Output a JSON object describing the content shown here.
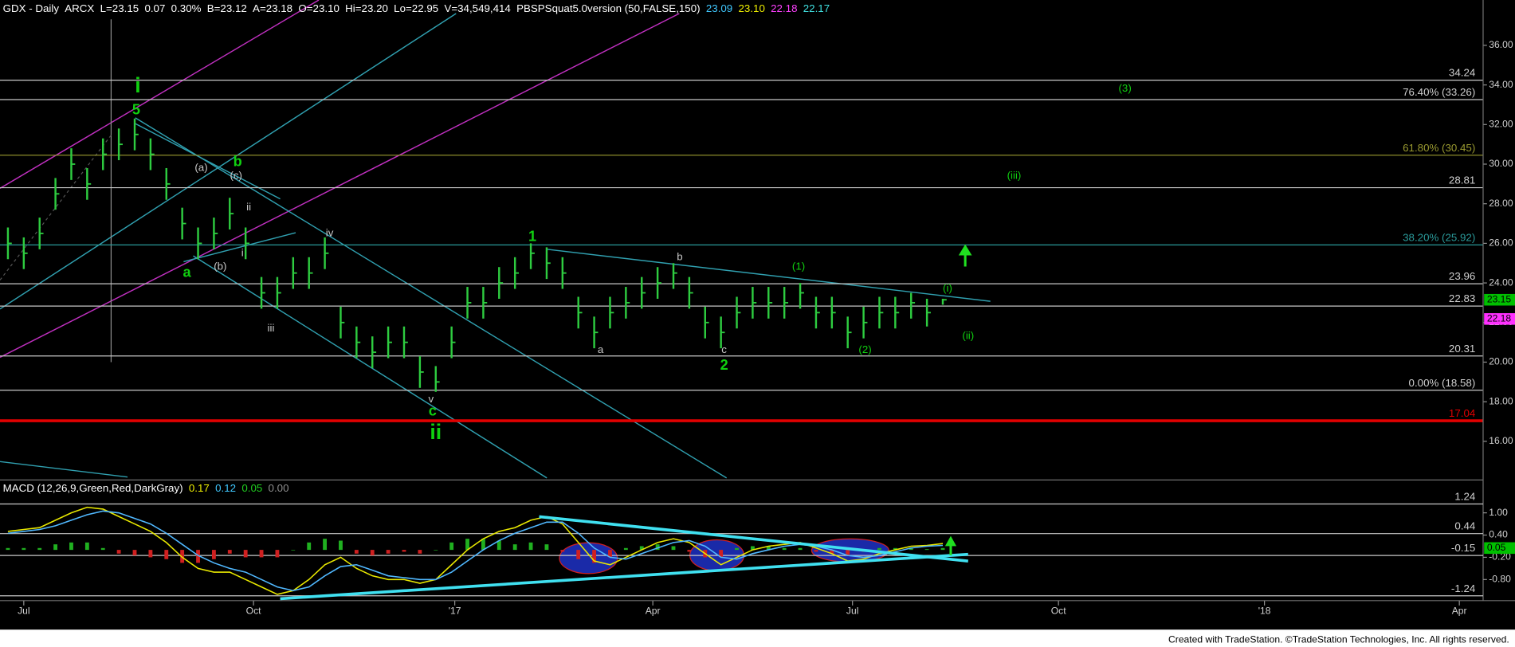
{
  "chart_data": [
    {
      "type": "ohlc",
      "header": [
        {
          "text": "GDX - Daily",
          "color": "#ffffff"
        },
        {
          "text": "ARCX",
          "color": "#ffffff"
        },
        {
          "text": "L=23.15",
          "color": "#ffffff"
        },
        {
          "text": "0.07",
          "color": "#ffffff"
        },
        {
          "text": "0.30%",
          "color": "#ffffff"
        },
        {
          "text": "B=23.12",
          "color": "#ffffff"
        },
        {
          "text": "A=23.18",
          "color": "#ffffff"
        },
        {
          "text": "O=23.10",
          "color": "#ffffff"
        },
        {
          "text": "Hi=23.20",
          "color": "#ffffff"
        },
        {
          "text": "Lo=22.95",
          "color": "#ffffff"
        },
        {
          "text": "V=34,549,414",
          "color": "#ffffff"
        },
        {
          "text": "PBSPSquat5.0version (50,FALSE,150)",
          "color": "#ffffff"
        },
        {
          "text": "23.09",
          "color": "#40c8ff"
        },
        {
          "text": "23.10",
          "color": "#f0f000"
        },
        {
          "text": "22.18",
          "color": "#ff40ff"
        },
        {
          "text": "22.17",
          "color": "#40e0e0"
        }
      ],
      "color": "#2ecc40",
      "x": [
        0,
        1,
        2,
        3,
        4,
        5,
        6,
        7,
        8,
        9,
        10,
        11,
        12,
        13,
        14,
        15,
        16,
        17,
        18,
        19,
        20,
        21,
        22,
        23,
        24,
        25,
        26,
        27,
        28,
        29,
        30,
        31,
        32,
        33,
        34,
        35,
        36,
        37,
        38,
        39,
        40,
        41,
        42,
        43,
        44,
        45,
        46,
        47,
        48,
        49,
        50,
        51,
        52,
        53,
        54,
        55,
        56,
        57,
        58,
        59
      ],
      "high": [
        26.8,
        26.3,
        27.3,
        29.3,
        30.8,
        29.8,
        31.3,
        31.8,
        32.3,
        31.3,
        29.8,
        27.8,
        26.8,
        27.3,
        28.3,
        26.8,
        24.3,
        24.3,
        25.3,
        25.3,
        26.3,
        22.8,
        21.8,
        21.3,
        21.8,
        21.8,
        20.3,
        19.8,
        21.8,
        23.8,
        23.8,
        24.8,
        25.3,
        26.0,
        25.8,
        25.3,
        23.3,
        22.3,
        23.3,
        23.8,
        24.3,
        24.8,
        25.0,
        24.3,
        22.8,
        22.3,
        23.3,
        23.8,
        23.8,
        23.8,
        24.0,
        23.3,
        23.3,
        22.3,
        22.8,
        23.3,
        23.3,
        23.5,
        23.2,
        23.2
      ],
      "low": [
        25.2,
        24.7,
        25.7,
        27.7,
        29.2,
        28.2,
        29.7,
        30.2,
        30.7,
        29.7,
        28.2,
        26.2,
        25.2,
        25.7,
        26.7,
        25.2,
        22.7,
        22.7,
        23.7,
        23.7,
        24.7,
        21.2,
        20.2,
        19.7,
        20.2,
        20.2,
        18.7,
        18.5,
        20.2,
        22.2,
        22.2,
        23.2,
        23.7,
        24.7,
        24.2,
        23.7,
        21.7,
        20.7,
        21.7,
        22.2,
        22.7,
        23.2,
        23.7,
        22.7,
        21.2,
        20.7,
        21.7,
        22.2,
        22.2,
        22.2,
        22.7,
        21.7,
        21.7,
        20.7,
        21.2,
        21.7,
        21.7,
        22.2,
        21.8,
        22.9
      ],
      "close": [
        26.0,
        25.5,
        26.5,
        28.5,
        30.0,
        29.0,
        30.5,
        31.0,
        31.5,
        30.5,
        29.0,
        27.0,
        26.0,
        26.5,
        27.5,
        26.0,
        23.5,
        23.5,
        24.5,
        24.5,
        25.5,
        22.0,
        21.0,
        20.5,
        21.0,
        21.0,
        19.5,
        19.0,
        21.0,
        23.0,
        23.0,
        24.0,
        24.5,
        25.5,
        25.0,
        24.5,
        22.5,
        21.5,
        22.5,
        23.0,
        23.5,
        24.0,
        24.5,
        23.5,
        22.0,
        21.5,
        22.5,
        23.0,
        23.0,
        23.0,
        23.5,
        22.5,
        22.5,
        21.5,
        22.0,
        22.5,
        22.5,
        23.0,
        22.5,
        23.15
      ],
      "xlim": [
        -0.5,
        93.1
      ],
      "ylim": [
        14.05,
        38.29
      ],
      "yticks": [
        {
          "value": 36,
          "label": "36.00"
        },
        {
          "value": 34,
          "label": "34.00"
        },
        {
          "value": 32,
          "label": "32.00"
        },
        {
          "value": 30,
          "label": "30.00"
        },
        {
          "value": 28,
          "label": "28.00"
        },
        {
          "value": 26,
          "label": "26.00"
        },
        {
          "value": 24,
          "label": "24.00"
        },
        {
          "value": 22,
          "label": "22.00"
        },
        {
          "value": 20,
          "label": "20.00"
        },
        {
          "value": 18,
          "label": "18.00"
        },
        {
          "value": 16,
          "label": "16.00"
        }
      ],
      "levels": [
        {
          "value": 34.24,
          "color": "#c8c8c8"
        },
        {
          "value": 33.26,
          "label": "76.40% (33.26)",
          "color": "#c8c8c8"
        },
        {
          "value": 30.45,
          "label": "61.80% (30.45)",
          "color": "#9a9a30"
        },
        {
          "value": 28.81,
          "color": "#c8c8c8"
        },
        {
          "value": 25.92,
          "label": "38.20% (25.92)",
          "color": "#2a9a9a"
        },
        {
          "value": 23.96,
          "color": "#c8c8c8"
        },
        {
          "value": 22.83,
          "color": "#c8c8c8"
        },
        {
          "value": 20.31,
          "color": "#c8c8c8"
        },
        {
          "value": 18.58,
          "label": "0.00% (18.58)",
          "color": "#c8c8c8"
        },
        {
          "value": 17.04,
          "color": "#e00000",
          "bold": true
        }
      ],
      "price_tags": [
        {
          "value": 23.15,
          "color": "#00c000"
        },
        {
          "value": 22.18,
          "color": "#ff30ff"
        }
      ],
      "annotations": [
        {
          "text": "i",
          "x": 8.2,
          "y": 33.9,
          "style": "major"
        },
        {
          "text": "5",
          "x": 8.1,
          "y": 32.7,
          "style": "wave"
        },
        {
          "text": "b",
          "x": 14.5,
          "y": 30.1,
          "style": "wave"
        },
        {
          "text": "(a)",
          "x": 12.2,
          "y": 29.8,
          "style": "minor"
        },
        {
          "text": "(c)",
          "x": 14.4,
          "y": 29.4,
          "style": "minor"
        },
        {
          "text": "ii",
          "x": 15.2,
          "y": 27.8,
          "style": "minor"
        },
        {
          "text": "i",
          "x": 14.8,
          "y": 25.5,
          "style": "minor"
        },
        {
          "text": "(b)",
          "x": 13.4,
          "y": 24.8,
          "style": "minor"
        },
        {
          "text": "a",
          "x": 11.3,
          "y": 24.5,
          "style": "wave"
        },
        {
          "text": "iv",
          "x": 20.3,
          "y": 26.5,
          "style": "minor"
        },
        {
          "text": "iii",
          "x": 16.6,
          "y": 21.7,
          "style": "minor"
        },
        {
          "text": "v",
          "x": 26.7,
          "y": 18.1,
          "style": "minor"
        },
        {
          "text": "c",
          "x": 26.8,
          "y": 17.5,
          "style": "wave"
        },
        {
          "text": "ii",
          "x": 27.0,
          "y": 16.4,
          "style": "major"
        },
        {
          "text": "1",
          "x": 33.1,
          "y": 26.3,
          "style": "wave"
        },
        {
          "text": "b",
          "x": 42.4,
          "y": 25.3,
          "style": "minor"
        },
        {
          "text": "a",
          "x": 37.4,
          "y": 20.6,
          "style": "minor"
        },
        {
          "text": "c",
          "x": 45.2,
          "y": 20.6,
          "style": "minor"
        },
        {
          "text": "2",
          "x": 45.2,
          "y": 19.8,
          "style": "wave"
        },
        {
          "text": "(1)",
          "x": 49.9,
          "y": 24.8,
          "style": "green"
        },
        {
          "text": "(2)",
          "x": 54.1,
          "y": 20.6,
          "style": "green"
        },
        {
          "text": "(i)",
          "x": 59.3,
          "y": 23.7,
          "style": "green"
        },
        {
          "text": "(ii)",
          "x": 60.6,
          "y": 21.3,
          "style": "green"
        },
        {
          "text": "(iii)",
          "x": 63.5,
          "y": 29.4,
          "style": "green"
        },
        {
          "text": "(3)",
          "x": 70.5,
          "y": 33.8,
          "style": "green"
        }
      ]
    },
    {
      "type": "macd",
      "header": [
        {
          "text": "MACD (12,26,9,Green,Red,DarkGray)",
          "color": "#ffffff"
        },
        {
          "text": "0.17",
          "color": "#f0f000"
        },
        {
          "text": "0.12",
          "color": "#40c8ff"
        },
        {
          "text": "0.05",
          "color": "#20d020"
        },
        {
          "text": "0.00",
          "color": "#909090"
        }
      ],
      "x": [
        0,
        1,
        2,
        3,
        4,
        5,
        6,
        7,
        8,
        9,
        10,
        11,
        12,
        13,
        14,
        15,
        16,
        17,
        18,
        19,
        20,
        21,
        22,
        23,
        24,
        25,
        26,
        27,
        28,
        29,
        30,
        31,
        32,
        33,
        34,
        35,
        36,
        37,
        38,
        39,
        40,
        41,
        42,
        43,
        44,
        45,
        46,
        47,
        48,
        49,
        50,
        51,
        52,
        53,
        54,
        55,
        56,
        57,
        58,
        59
      ],
      "series": [
        {
          "name": "MACD",
          "color": "#e8e800",
          "values": [
            0.5,
            0.55,
            0.6,
            0.8,
            1.0,
            1.15,
            1.1,
            0.9,
            0.7,
            0.5,
            0.2,
            -0.2,
            -0.5,
            -0.6,
            -0.6,
            -0.8,
            -1.0,
            -1.2,
            -1.1,
            -0.8,
            -0.4,
            -0.2,
            -0.5,
            -0.7,
            -0.8,
            -0.8,
            -0.9,
            -0.8,
            -0.4,
            0.0,
            0.3,
            0.5,
            0.6,
            0.8,
            0.9,
            0.7,
            0.2,
            -0.3,
            -0.4,
            -0.2,
            0.0,
            0.2,
            0.3,
            0.2,
            -0.1,
            -0.4,
            -0.2,
            0.0,
            0.1,
            0.15,
            0.2,
            0.05,
            -0.1,
            -0.3,
            -0.25,
            -0.1,
            0.0,
            0.1,
            0.12,
            0.17
          ]
        },
        {
          "name": "Signal",
          "color": "#50b8ff",
          "values": [
            0.45,
            0.5,
            0.55,
            0.65,
            0.8,
            0.95,
            1.05,
            1.0,
            0.85,
            0.7,
            0.45,
            0.15,
            -0.15,
            -0.35,
            -0.5,
            -0.6,
            -0.8,
            -1.0,
            -1.1,
            -1.0,
            -0.7,
            -0.45,
            -0.4,
            -0.55,
            -0.7,
            -0.75,
            -0.8,
            -0.8,
            -0.6,
            -0.3,
            0.0,
            0.25,
            0.45,
            0.6,
            0.75,
            0.75,
            0.45,
            0.05,
            -0.2,
            -0.25,
            -0.1,
            0.05,
            0.2,
            0.25,
            0.1,
            -0.2,
            -0.25,
            -0.1,
            0.0,
            0.1,
            0.15,
            0.1,
            0.0,
            -0.15,
            -0.2,
            -0.15,
            -0.05,
            0.05,
            0.1,
            0.12
          ]
        }
      ],
      "histogram": [
        0.05,
        0.05,
        0.05,
        0.15,
        0.2,
        0.2,
        0.05,
        -0.1,
        -0.15,
        -0.2,
        -0.25,
        -0.35,
        -0.35,
        -0.25,
        -0.1,
        -0.2,
        -0.2,
        -0.2,
        0.0,
        0.2,
        0.3,
        0.25,
        -0.1,
        -0.15,
        -0.1,
        -0.05,
        -0.1,
        0.0,
        0.2,
        0.3,
        0.3,
        0.25,
        0.15,
        0.2,
        0.15,
        -0.05,
        -0.25,
        -0.35,
        -0.2,
        0.05,
        0.1,
        0.15,
        0.1,
        -0.05,
        -0.2,
        -0.2,
        0.05,
        0.1,
        0.1,
        0.05,
        0.05,
        -0.05,
        -0.1,
        -0.15,
        -0.05,
        0.05,
        0.05,
        0.05,
        0.02,
        0.05
      ],
      "histogram_colors": {
        "positive": "#20b020",
        "negative": "#d02020"
      },
      "xlim": [
        -0.5,
        93.1
      ],
      "ylim": [
        -1.37,
        1.81
      ],
      "yticks": [
        {
          "value": 1,
          "label": "1.00"
        },
        {
          "value": 0.4,
          "label": "0.40"
        },
        {
          "value": -0.2,
          "label": "-0.20"
        },
        {
          "value": -0.8,
          "label": "-0.80"
        }
      ],
      "levels": [
        {
          "value": 1.24
        },
        {
          "value": 0.44
        },
        {
          "value": -0.15
        },
        {
          "value": -1.24
        }
      ],
      "price_tags": [
        {
          "value": 0.05,
          "color": "#00c000"
        }
      ],
      "xticks": [
        {
          "value": 1.0,
          "label": "Jul"
        },
        {
          "value": 15.5,
          "label": "Oct"
        },
        {
          "value": 28.2,
          "label": "'17"
        },
        {
          "value": 40.7,
          "label": "Apr"
        },
        {
          "value": 53.3,
          "label": "Jul"
        },
        {
          "value": 66.3,
          "label": "Oct"
        },
        {
          "value": 79.3,
          "label": "'18"
        },
        {
          "value": 91.6,
          "label": "Apr"
        }
      ]
    }
  ],
  "footer": "Created with TradeStation. ©TradeStation Technologies, Inc. All rights reserved."
}
